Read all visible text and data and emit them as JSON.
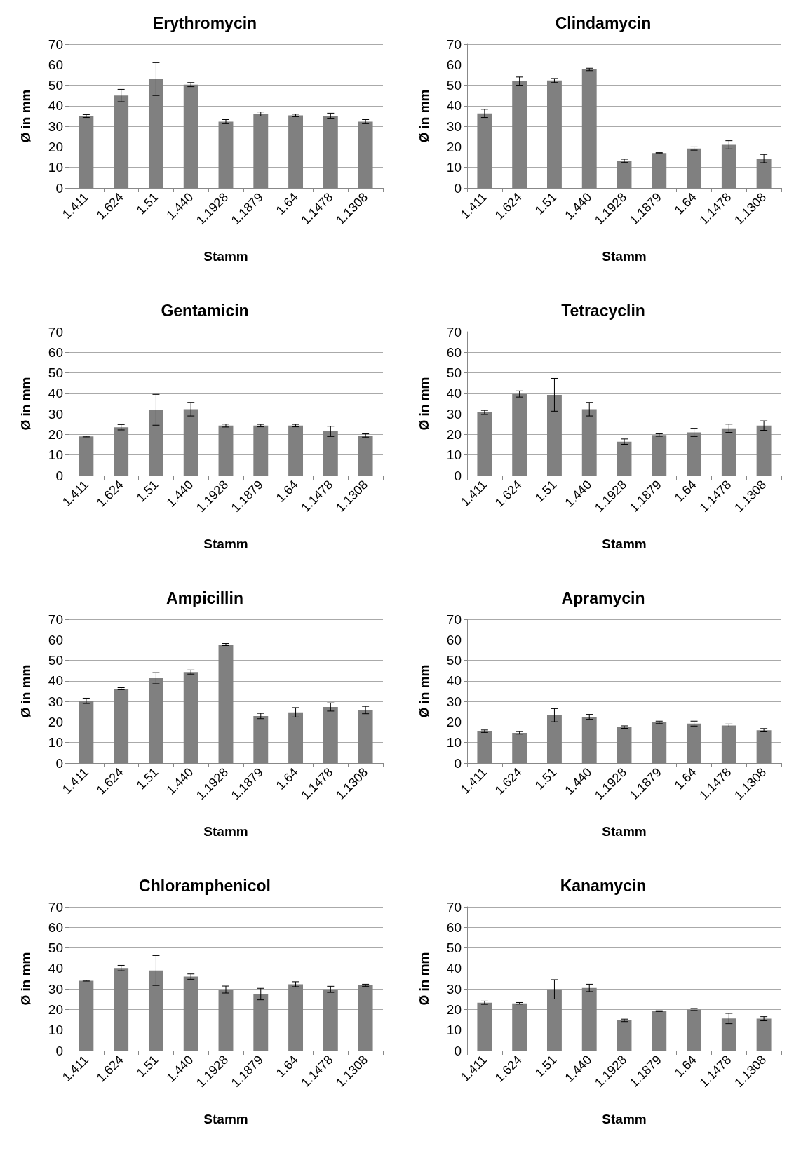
{
  "chart_data": [
    {
      "type": "bar",
      "title": "Erythromycin",
      "xlabel": "Stamm",
      "ylabel": "Ø in mm",
      "categories": [
        "1.411",
        "1.624",
        "1.51",
        "1.440",
        "1.1928",
        "1.1879",
        "1.64",
        "1.1478",
        "1.1308"
      ],
      "values": [
        35,
        45,
        53,
        50.3,
        32.3,
        36,
        35.3,
        35.2,
        32.3
      ],
      "errors": [
        0.7,
        3,
        8,
        1,
        1,
        1,
        0.6,
        1.2,
        1
      ],
      "color": "#808080",
      "ylim": [
        0,
        70
      ],
      "yticks": [
        0,
        10,
        20,
        30,
        40,
        50,
        60,
        70
      ],
      "grid": "y"
    },
    {
      "type": "bar",
      "title": "Clindamycin",
      "xlabel": "Stamm",
      "ylabel": "Ø in mm",
      "categories": [
        "1.411",
        "1.624",
        "1.51",
        "1.440",
        "1.1928",
        "1.1879",
        "1.64",
        "1.1478",
        "1.1308"
      ],
      "values": [
        36.3,
        52,
        52.3,
        57.7,
        13.2,
        17,
        19.2,
        21,
        14.3
      ],
      "errors": [
        2,
        2,
        1,
        0.6,
        0.8,
        0.2,
        0.8,
        2,
        2
      ],
      "color": "#808080",
      "ylim": [
        0,
        70
      ],
      "yticks": [
        0,
        10,
        20,
        30,
        40,
        50,
        60,
        70
      ],
      "grid": "y"
    },
    {
      "type": "bar",
      "title": "Gentamicin",
      "xlabel": "Stamm",
      "ylabel": "Ø in mm",
      "categories": [
        "1.411",
        "1.624",
        "1.51",
        "1.440",
        "1.1928",
        "1.1879",
        "1.64",
        "1.1478",
        "1.1308"
      ],
      "values": [
        19,
        23.5,
        32,
        32.3,
        24.3,
        24.3,
        24.3,
        21.5,
        19.5
      ],
      "errors": [
        0.2,
        1.3,
        7.5,
        3.3,
        0.7,
        0.6,
        0.6,
        2.5,
        0.8
      ],
      "color": "#808080",
      "ylim": [
        0,
        70
      ],
      "yticks": [
        0,
        10,
        20,
        30,
        40,
        50,
        60,
        70
      ],
      "grid": "y"
    },
    {
      "type": "bar",
      "title": "Tetracyclin",
      "xlabel": "Stamm",
      "ylabel": "Ø in mm",
      "categories": [
        "1.411",
        "1.624",
        "1.51",
        "1.440",
        "1.1928",
        "1.1879",
        "1.64",
        "1.1478",
        "1.1308"
      ],
      "values": [
        30.7,
        39.7,
        39.3,
        32.3,
        16.5,
        19.7,
        21,
        23,
        24.3
      ],
      "errors": [
        1,
        1.5,
        8,
        3.3,
        1.3,
        0.6,
        2,
        2,
        2.3
      ],
      "color": "#808080",
      "ylim": [
        0,
        70
      ],
      "yticks": [
        0,
        10,
        20,
        30,
        40,
        50,
        60,
        70
      ],
      "grid": "y"
    },
    {
      "type": "bar",
      "title": "Ampicillin",
      "xlabel": "Stamm",
      "ylabel": "Ø in mm",
      "categories": [
        "1.411",
        "1.624",
        "1.51",
        "1.440",
        "1.1928",
        "1.1879",
        "1.64",
        "1.1478",
        "1.1308"
      ],
      "values": [
        30.3,
        36.2,
        41.3,
        44.3,
        57.7,
        22.9,
        24.7,
        27.3,
        25.8
      ],
      "errors": [
        1.3,
        0.5,
        2.7,
        1,
        0.5,
        1.3,
        2.3,
        2,
        1.8
      ],
      "color": "#808080",
      "ylim": [
        0,
        70
      ],
      "yticks": [
        0,
        10,
        20,
        30,
        40,
        50,
        60,
        70
      ],
      "grid": "y"
    },
    {
      "type": "bar",
      "title": "Apramycin",
      "xlabel": "Stamm",
      "ylabel": "Ø in mm",
      "categories": [
        "1.411",
        "1.624",
        "1.51",
        "1.440",
        "1.1928",
        "1.1879",
        "1.64",
        "1.1478",
        "1.1308"
      ],
      "values": [
        15.5,
        14.7,
        23.3,
        22.5,
        17.5,
        19.8,
        19.2,
        18.3,
        16
      ],
      "errors": [
        0.6,
        0.6,
        3.2,
        1.2,
        0.6,
        0.6,
        1.2,
        0.7,
        0.8
      ],
      "color": "#808080",
      "ylim": [
        0,
        70
      ],
      "yticks": [
        0,
        10,
        20,
        30,
        40,
        50,
        60,
        70
      ],
      "grid": "y"
    },
    {
      "type": "bar",
      "title": "Chloramphenicol",
      "xlabel": "Stamm",
      "ylabel": "Ø in mm",
      "categories": [
        "1.411",
        "1.624",
        "1.51",
        "1.440",
        "1.1928",
        "1.1879",
        "1.64",
        "1.1478",
        "1.1308"
      ],
      "values": [
        34,
        40.2,
        39,
        36,
        29.7,
        27.5,
        32.3,
        29.8,
        31.8
      ],
      "errors": [
        0.2,
        1.3,
        7.3,
        1.3,
        1.7,
        2.8,
        1.2,
        1.5,
        0.5
      ],
      "color": "#808080",
      "ylim": [
        0,
        70
      ],
      "yticks": [
        0,
        10,
        20,
        30,
        40,
        50,
        60,
        70
      ],
      "grid": "y"
    },
    {
      "type": "bar",
      "title": "Kanamycin",
      "xlabel": "Stamm",
      "ylabel": "Ø in mm",
      "categories": [
        "1.411",
        "1.624",
        "1.51",
        "1.440",
        "1.1928",
        "1.1879",
        "1.64",
        "1.1478",
        "1.1308"
      ],
      "values": [
        23.3,
        23,
        29.8,
        30.5,
        14.7,
        19.2,
        20,
        15.6,
        15.5
      ],
      "errors": [
        0.8,
        0.4,
        4.7,
        1.8,
        0.6,
        0.2,
        0.5,
        2.5,
        1
      ],
      "color": "#808080",
      "ylim": [
        0,
        70
      ],
      "yticks": [
        0,
        10,
        20,
        30,
        40,
        50,
        60,
        70
      ],
      "grid": "y"
    }
  ]
}
